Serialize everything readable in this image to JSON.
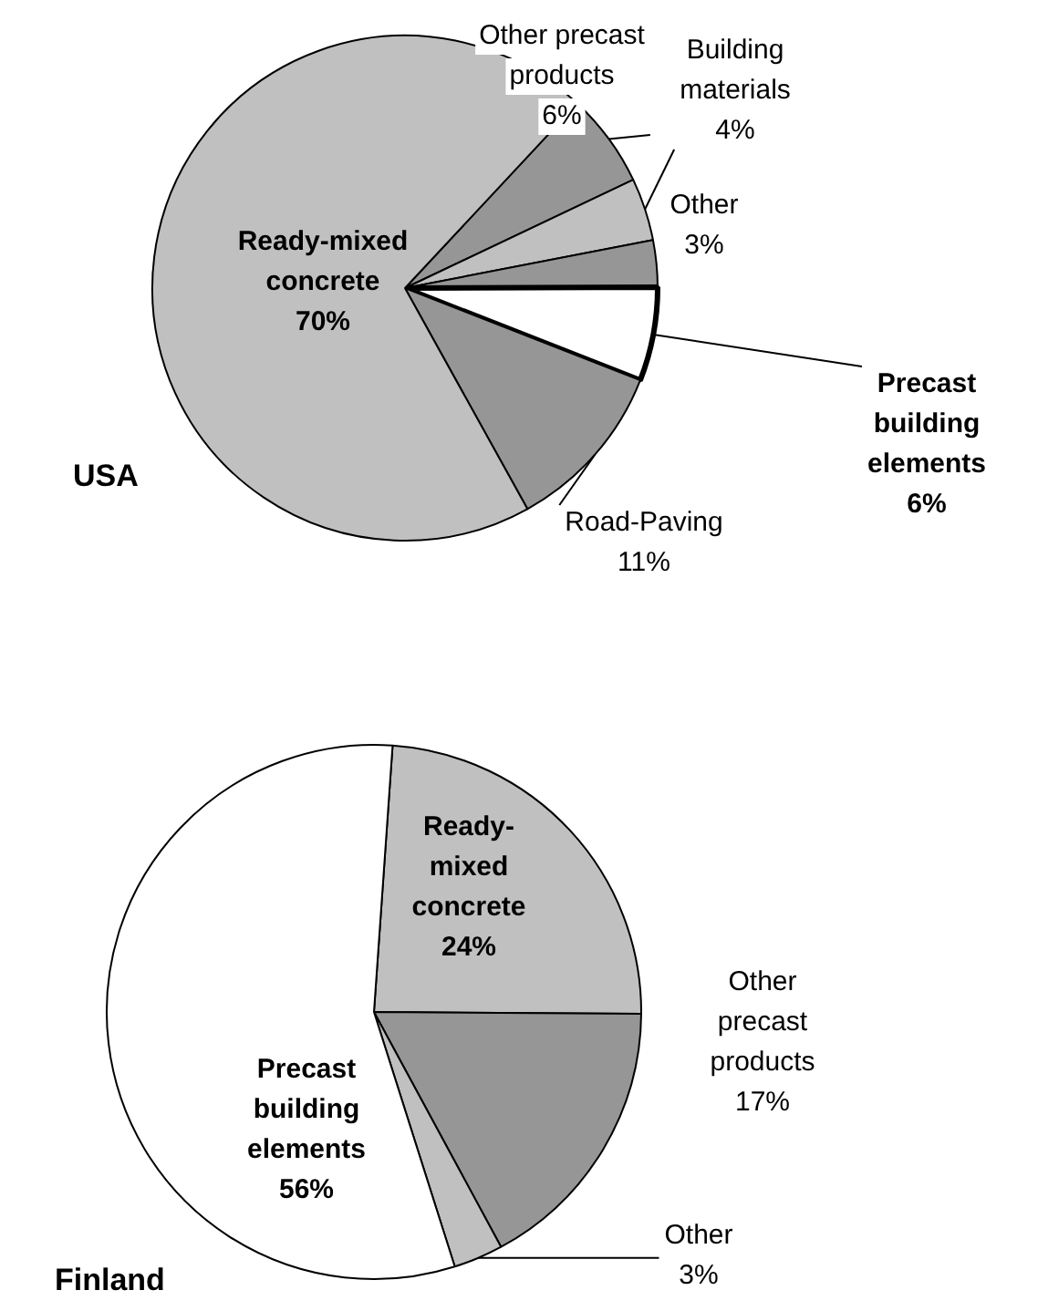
{
  "chart_data": [
    {
      "type": "pie",
      "title": "USA",
      "categories": [
        "Other precast products",
        "Building materials",
        "Other",
        "Precast building elements",
        "Road-Paving",
        "Ready-mixed concrete"
      ],
      "values": [
        6,
        4,
        3,
        6,
        11,
        70
      ],
      "value_labels": [
        "6%",
        "4%",
        "3%",
        "6%",
        "11%",
        "70%"
      ],
      "colors": [
        "#969696",
        "#c0c0c0",
        "#969696",
        "#ffffff",
        "#969696",
        "#c0c0c0"
      ],
      "legend": false
    },
    {
      "type": "pie",
      "title": "Finland",
      "categories": [
        "Ready-mixed concrete",
        "Other precast products",
        "Other",
        "Precast building elements"
      ],
      "values": [
        24,
        17,
        3,
        56
      ],
      "value_labels": [
        "24%",
        "17%",
        "3%",
        "56%"
      ],
      "colors": [
        "#c0c0c0",
        "#969696",
        "#c0c0c0",
        "#ffffff"
      ],
      "legend": false
    }
  ]
}
